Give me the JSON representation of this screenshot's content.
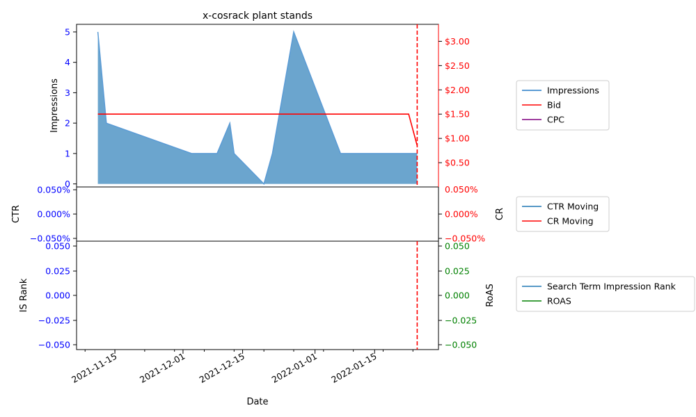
{
  "chart_data": [
    {
      "type": "area",
      "title": "x-cosrack plant stands",
      "ylabel": "Impressions",
      "y2label": "",
      "ylim": [
        -0.1,
        5.25
      ],
      "y_ticks": [
        0,
        1,
        2,
        3,
        4,
        5
      ],
      "y2lim": [
        0,
        3.35
      ],
      "y2_ticks": [
        0.5,
        1.0,
        1.5,
        2.0,
        2.5,
        3.0
      ],
      "y2_tick_labels": [
        "$0.50",
        "$1.00",
        "$1.50",
        "$2.00",
        "$2.50",
        "$3.00"
      ],
      "y2_extra_tick_label": "0.050%",
      "legend_position": "right",
      "series": [
        {
          "name": "Impressions",
          "color": "#1f77b4",
          "x": [
            "2021-11-11",
            "2021-11-13",
            "2021-12-03",
            "2021-12-09",
            "2021-12-12",
            "2021-12-13",
            "2021-12-20",
            "2021-12-22",
            "2021-12-27",
            "2022-01-07",
            "2022-01-25"
          ],
          "values": [
            5,
            2,
            1,
            1,
            2,
            1,
            0,
            1,
            5,
            1,
            1
          ]
        },
        {
          "name": "Bid",
          "color": "#ff0000",
          "x": [
            "2021-11-11",
            "2022-01-23",
            "2022-01-25"
          ],
          "values": [
            1.5,
            1.5,
            0.85
          ]
        },
        {
          "name": "CPC",
          "color": "#800080",
          "x": [],
          "values": []
        }
      ],
      "vline": {
        "x": "2022-01-25",
        "color": "#ff0000",
        "style": "dashed"
      }
    },
    {
      "type": "line",
      "ylabel": "CTR",
      "y2label": "CR",
      "y_ticks": [
        0.05,
        0.0,
        -0.05
      ],
      "y_tick_labels": [
        "0.050%",
        "0.000%",
        "−0.050%"
      ],
      "y2_tick_labels": [
        "0.050%",
        "0.000%",
        "−0.050%"
      ],
      "series": [
        {
          "name": "CTR Moving",
          "color": "#1f77b4",
          "values": []
        },
        {
          "name": "CR Moving",
          "color": "#ff0000",
          "values": []
        }
      ]
    },
    {
      "type": "line",
      "ylabel": "IS Rank",
      "y2label": "RoAS",
      "xlabel": "Date",
      "y_ticks": [
        0.05,
        0.025,
        0.0,
        -0.025,
        -0.05
      ],
      "y_tick_labels": [
        "0.050",
        "0.025",
        "0.000",
        "−0.025",
        "−0.050"
      ],
      "y2_tick_labels": [
        "0.050",
        "0.025",
        "0.000",
        "−0.025",
        "−0.050"
      ],
      "x_tick_labels": [
        "2021-11-15",
        "2021-12-01",
        "2021-12-15",
        "2022-01-01",
        "2022-01-15"
      ],
      "series": [
        {
          "name": "Search Term Impression Rank",
          "color": "#1f77b4",
          "values": []
        },
        {
          "name": "ROAS",
          "color": "#008000",
          "values": []
        }
      ]
    }
  ],
  "axis_colors": {
    "left": "#0000ff",
    "right_top": "#ff0000",
    "right_bottom": "#008000"
  }
}
